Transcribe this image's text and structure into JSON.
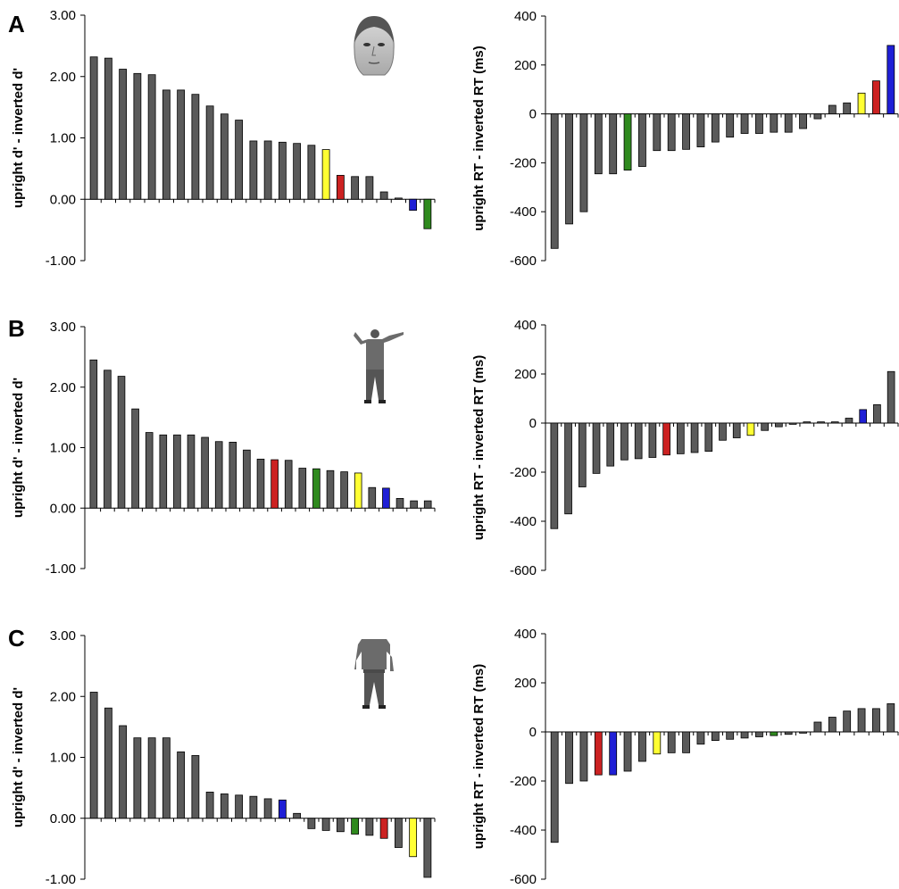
{
  "figure": {
    "panels": [
      {
        "letter": "A",
        "stimulus_icon": "face-icon"
      },
      {
        "letter": "B",
        "stimulus_icon": "body-with-head-icon"
      },
      {
        "letter": "C",
        "stimulus_icon": "headless-body-icon"
      }
    ],
    "colors": {
      "default": "#5a5a5a",
      "yellow": "#ffff33",
      "red": "#cc2222",
      "green": "#2f8a1e",
      "blue": "#1f1fd6"
    }
  },
  "chart_data": [
    {
      "type": "bar",
      "panel": "A",
      "ylabel": "upright d' - inverted d'",
      "ylim": [
        -1,
        3
      ],
      "yticks": [
        "3.00",
        "2.00",
        "1.00",
        "0.00",
        "-1.00"
      ],
      "ytick_values": [
        3,
        2,
        1,
        0,
        -1
      ],
      "values": [
        2.32,
        2.3,
        2.12,
        2.05,
        2.03,
        1.78,
        1.78,
        1.71,
        1.52,
        1.39,
        1.29,
        0.95,
        0.95,
        0.93,
        0.91,
        0.88,
        0.81,
        0.39,
        0.37,
        0.37,
        0.12,
        0.02,
        -0.18,
        -0.48
      ],
      "colors": [
        "default",
        "default",
        "default",
        "default",
        "default",
        "default",
        "default",
        "default",
        "default",
        "default",
        "default",
        "default",
        "default",
        "default",
        "default",
        "default",
        "yellow",
        "red",
        "default",
        "default",
        "default",
        "default",
        "blue",
        "green"
      ]
    },
    {
      "type": "bar",
      "panel": "A",
      "ylabel": "upright RT - inverted RT (ms)",
      "ylim": [
        -600,
        400
      ],
      "yticks": [
        "400",
        "200",
        "0",
        "-200",
        "-400",
        "-600"
      ],
      "ytick_values": [
        400,
        200,
        0,
        -200,
        -400,
        -600
      ],
      "values": [
        -550,
        -450,
        -400,
        -245,
        -245,
        -230,
        -215,
        -150,
        -150,
        -145,
        -135,
        -115,
        -95,
        -80,
        -80,
        -75,
        -75,
        -60,
        -20,
        35,
        45,
        85,
        135,
        280
      ],
      "colors": [
        "default",
        "default",
        "default",
        "default",
        "default",
        "green",
        "default",
        "default",
        "default",
        "default",
        "default",
        "default",
        "default",
        "default",
        "default",
        "default",
        "default",
        "default",
        "default",
        "default",
        "default",
        "yellow",
        "red",
        "blue"
      ]
    },
    {
      "type": "bar",
      "panel": "B",
      "ylabel": "upright d' - inverted d'",
      "ylim": [
        -1,
        3
      ],
      "yticks": [
        "3.00",
        "2.00",
        "1.00",
        "0.00",
        "-1.00"
      ],
      "ytick_values": [
        3,
        2,
        1,
        0,
        -1
      ],
      "values": [
        2.45,
        2.28,
        2.18,
        1.64,
        1.25,
        1.21,
        1.21,
        1.21,
        1.17,
        1.1,
        1.09,
        0.96,
        0.81,
        0.8,
        0.79,
        0.66,
        0.65,
        0.62,
        0.6,
        0.58,
        0.34,
        0.33,
        0.16,
        0.12,
        0.12
      ],
      "colors": [
        "default",
        "default",
        "default",
        "default",
        "default",
        "default",
        "default",
        "default",
        "default",
        "default",
        "default",
        "default",
        "default",
        "red",
        "default",
        "default",
        "green",
        "default",
        "default",
        "yellow",
        "default",
        "blue",
        "default",
        "default",
        "default"
      ]
    },
    {
      "type": "bar",
      "panel": "B",
      "ylabel": "upright RT - inverted RT (ms)",
      "ylim": [
        -600,
        400
      ],
      "yticks": [
        "400",
        "200",
        "0",
        "-200",
        "-400",
        "-600"
      ],
      "ytick_values": [
        400,
        200,
        0,
        -200,
        -400,
        -600
      ],
      "values": [
        -430,
        -370,
        -260,
        -205,
        -175,
        -150,
        -145,
        -140,
        -130,
        -125,
        -120,
        -115,
        -70,
        -60,
        -50,
        -30,
        -15,
        -5,
        5,
        5,
        5,
        20,
        55,
        75,
        210
      ],
      "colors": [
        "default",
        "default",
        "default",
        "default",
        "default",
        "default",
        "default",
        "default",
        "red",
        "default",
        "default",
        "default",
        "default",
        "default",
        "yellow",
        "default",
        "default",
        "default",
        "default",
        "default",
        "default",
        "default",
        "blue",
        "default",
        "default"
      ]
    },
    {
      "type": "bar",
      "panel": "C",
      "ylabel": "upright d' - inverted d'",
      "ylim": [
        -1,
        3
      ],
      "yticks": [
        "3.00",
        "2.00",
        "1.00",
        "0.00",
        "-1.00"
      ],
      "ytick_values": [
        3,
        2,
        1,
        0,
        -1
      ],
      "values": [
        2.07,
        1.81,
        1.52,
        1.32,
        1.32,
        1.32,
        1.09,
        1.03,
        0.43,
        0.4,
        0.38,
        0.36,
        0.32,
        0.3,
        0.08,
        -0.17,
        -0.2,
        -0.22,
        -0.26,
        -0.28,
        -0.33,
        -0.48,
        -0.63,
        -0.97
      ],
      "colors": [
        "default",
        "default",
        "default",
        "default",
        "default",
        "default",
        "default",
        "default",
        "default",
        "default",
        "default",
        "default",
        "default",
        "blue",
        "default",
        "default",
        "default",
        "default",
        "green",
        "default",
        "red",
        "default",
        "yellow",
        "default"
      ]
    },
    {
      "type": "bar",
      "panel": "C",
      "ylabel": "upright RT - inverted RT (ms)",
      "ylim": [
        -600,
        400
      ],
      "yticks": [
        "400",
        "200",
        "0",
        "-200",
        "-400",
        "-600"
      ],
      "ytick_values": [
        400,
        200,
        0,
        -200,
        -400,
        -600
      ],
      "values": [
        -450,
        -210,
        -200,
        -175,
        -175,
        -160,
        -120,
        -90,
        -85,
        -85,
        -50,
        -35,
        -30,
        -25,
        -20,
        -15,
        -10,
        -5,
        40,
        60,
        85,
        95,
        95,
        115
      ],
      "colors": [
        "default",
        "default",
        "default",
        "red",
        "blue",
        "default",
        "default",
        "yellow",
        "default",
        "default",
        "default",
        "default",
        "default",
        "default",
        "default",
        "green",
        "default",
        "default",
        "default",
        "default",
        "default",
        "default",
        "default",
        "default"
      ]
    }
  ]
}
